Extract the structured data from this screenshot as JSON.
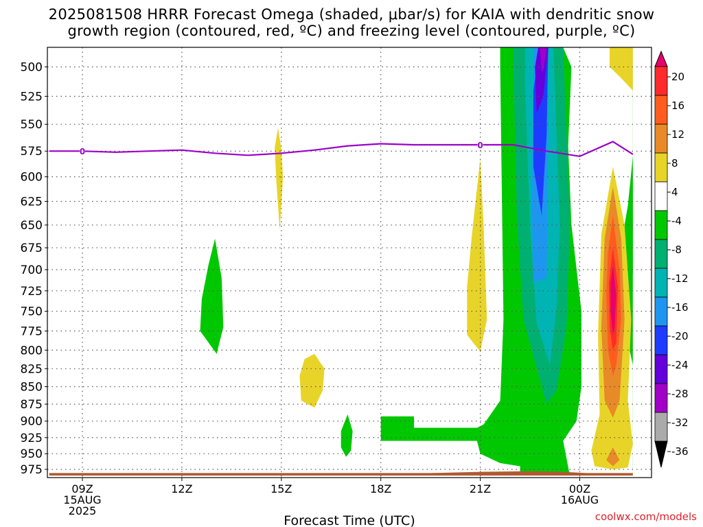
{
  "title": {
    "line1": "2025081508 HRRR Forecast Omega (shaded, μbar/s) for KAIA with dendritic snow",
    "line2": "growth region (contoured, red, ºC) and freezing level (contoured, purple, ºC)"
  },
  "footer": {
    "xlabel": "Forecast Time (UTC)",
    "credit": "coolwx.com/models"
  },
  "chart_data": {
    "type": "filled-contour",
    "x_axis": {
      "label": "Forecast Time (UTC)",
      "range_hours": [
        -1,
        16.6
      ],
      "ticks": [
        {
          "hour": 0,
          "label": "09Z",
          "sub": [
            "15AUG",
            "2025"
          ]
        },
        {
          "hour": 3,
          "label": "12Z",
          "sub": []
        },
        {
          "hour": 6,
          "label": "15Z",
          "sub": []
        },
        {
          "hour": 9,
          "label": "18Z",
          "sub": []
        },
        {
          "hour": 12,
          "label": "21Z",
          "sub": []
        },
        {
          "hour": 15,
          "label": "00Z",
          "sub": [
            "16AUG"
          ]
        }
      ]
    },
    "y_axis": {
      "label": "",
      "unit": "hPa",
      "range": [
        475,
        985
      ],
      "ticks": [
        500,
        525,
        550,
        575,
        600,
        625,
        650,
        675,
        700,
        725,
        750,
        775,
        800,
        825,
        850,
        875,
        900,
        925,
        950,
        975
      ]
    },
    "colorbar": {
      "labels": [
        "20",
        "16",
        "12",
        "8",
        "4",
        "-4",
        "-8",
        "-12",
        "-16",
        "-20",
        "-24",
        "-28",
        "-32",
        "-36"
      ],
      "levels": [
        {
          "lo": 20,
          "color": "#e8006e"
        },
        {
          "lo": 16,
          "color": "#ff2a2a"
        },
        {
          "lo": 12,
          "color": "#ff5c1e"
        },
        {
          "lo": 8,
          "color": "#e88a28"
        },
        {
          "lo": 4,
          "color": "#e8d428"
        },
        {
          "lo": -4,
          "color": "#ffffff"
        },
        {
          "lo": -8,
          "color": "#00c800"
        },
        {
          "lo": -12,
          "color": "#00b070"
        },
        {
          "lo": -16,
          "color": "#00b4b4"
        },
        {
          "lo": -20,
          "color": "#1e96f0"
        },
        {
          "lo": -24,
          "color": "#1e3cff"
        },
        {
          "lo": -28,
          "color": "#6400dc"
        },
        {
          "lo": -32,
          "color": "#a000c8"
        },
        {
          "lo": -36,
          "color": "#aaaaaa"
        },
        {
          "lo": -40,
          "color": "#000000"
        }
      ]
    },
    "freezing_level": {
      "color": "#9b00c8",
      "label": "0",
      "label_hours": [
        0,
        12
      ],
      "points": [
        {
          "h": -1,
          "p": 575
        },
        {
          "h": 0,
          "p": 575
        },
        {
          "h": 1,
          "p": 576
        },
        {
          "h": 2,
          "p": 575
        },
        {
          "h": 3,
          "p": 574
        },
        {
          "h": 4,
          "p": 577
        },
        {
          "h": 5,
          "p": 579
        },
        {
          "h": 6,
          "p": 577
        },
        {
          "h": 7,
          "p": 574
        },
        {
          "h": 8,
          "p": 570
        },
        {
          "h": 9,
          "p": 568
        },
        {
          "h": 10,
          "p": 569
        },
        {
          "h": 11,
          "p": 569
        },
        {
          "h": 12,
          "p": 569
        },
        {
          "h": 13,
          "p": 569
        },
        {
          "h": 14,
          "p": 575
        },
        {
          "h": 15,
          "p": 580
        },
        {
          "h": 16,
          "p": 566
        },
        {
          "h": 16.6,
          "p": 578
        }
      ]
    },
    "omega_regions": [
      {
        "color": "#e8d428",
        "label": "4 to 8",
        "points": [
          [
            5.8,
            572
          ],
          [
            5.9,
            553
          ],
          [
            6.0,
            573
          ],
          [
            6.05,
            600
          ],
          [
            5.95,
            655
          ],
          [
            5.85,
            605
          ]
        ]
      },
      {
        "color": "#00c800",
        "label": "-4 to -8",
        "points": [
          [
            4,
            665
          ],
          [
            4.2,
            710
          ],
          [
            4.25,
            770
          ],
          [
            4.05,
            805
          ],
          [
            3.55,
            775
          ],
          [
            3.6,
            735
          ],
          [
            3.8,
            695
          ]
        ]
      },
      {
        "color": "#e8d428",
        "label": "4 to 8",
        "points": [
          [
            7.0,
            805
          ],
          [
            7.3,
            825
          ],
          [
            7.25,
            855
          ],
          [
            7.0,
            880
          ],
          [
            6.6,
            870
          ],
          [
            6.55,
            835
          ],
          [
            6.7,
            812
          ]
        ]
      },
      {
        "color": "#00c800",
        "label": "-4 to -8",
        "points": [
          [
            8.0,
            890
          ],
          [
            8.15,
            915
          ],
          [
            8.1,
            945
          ],
          [
            7.95,
            955
          ],
          [
            7.8,
            940
          ],
          [
            7.8,
            915
          ]
        ]
      },
      {
        "color": "#e8d428",
        "label": "4 to 8",
        "points": [
          [
            12.0,
            582
          ],
          [
            12.1,
            650
          ],
          [
            12.2,
            760
          ],
          [
            12.0,
            802
          ],
          [
            11.6,
            780
          ],
          [
            11.6,
            720
          ],
          [
            11.75,
            660
          ]
        ]
      },
      {
        "color": "#00c800",
        "label": "-4 to -8",
        "points": [
          [
            12.6,
            475
          ],
          [
            16.6,
            475
          ],
          [
            16.6,
            985
          ],
          [
            13.2,
            985
          ],
          [
            13.2,
            970
          ],
          [
            12.6,
            965
          ],
          [
            12.0,
            950
          ],
          [
            11.9,
            930
          ],
          [
            9.8,
            930
          ],
          [
            9.0,
            930
          ],
          [
            9.0,
            893
          ],
          [
            10.0,
            893
          ],
          [
            10.0,
            910
          ],
          [
            11.9,
            910
          ],
          [
            12.1,
            905
          ],
          [
            12.6,
            870
          ],
          [
            12.7,
            760
          ],
          [
            12.6,
            500
          ]
        ]
      },
      {
        "color": "#ffffff",
        "label": "-4 to 4",
        "points": [
          [
            14.5,
            475
          ],
          [
            16.6,
            475
          ],
          [
            16.6,
            600
          ],
          [
            16.35,
            650
          ],
          [
            16.2,
            740
          ],
          [
            16.6,
            820
          ],
          [
            16.6,
            985
          ],
          [
            14.7,
            985
          ],
          [
            14.5,
            930
          ],
          [
            14.9,
            900
          ],
          [
            15.05,
            850
          ],
          [
            15.05,
            750
          ],
          [
            14.75,
            650
          ],
          [
            14.65,
            570
          ],
          [
            14.75,
            500
          ]
        ]
      },
      {
        "color": "#00c800",
        "label": "-4 to -8",
        "points": [
          [
            16.6,
            580
          ],
          [
            16.6,
            705
          ],
          [
            16.45,
            690
          ],
          [
            16.45,
            630
          ]
        ]
      },
      {
        "color": "#00b070",
        "label": "-8 to -12",
        "points": [
          [
            13.0,
            475
          ],
          [
            14.5,
            475
          ],
          [
            14.6,
            560
          ],
          [
            14.7,
            650
          ],
          [
            14.6,
            770
          ],
          [
            14.3,
            855
          ],
          [
            14.0,
            875
          ],
          [
            13.3,
            760
          ],
          [
            13.1,
            640
          ],
          [
            13.0,
            500
          ]
        ]
      },
      {
        "color": "#00b4b4",
        "label": "-12 to -16",
        "points": [
          [
            13.35,
            475
          ],
          [
            14.2,
            475
          ],
          [
            14.3,
            560
          ],
          [
            14.4,
            650
          ],
          [
            14.3,
            745
          ],
          [
            14.1,
            820
          ],
          [
            13.7,
            765
          ],
          [
            13.5,
            650
          ],
          [
            13.35,
            520
          ]
        ]
      },
      {
        "color": "#1e96f0",
        "label": "-16 to -20",
        "points": [
          [
            13.6,
            475
          ],
          [
            14.0,
            475
          ],
          [
            14.05,
            560
          ],
          [
            14.0,
            710
          ],
          [
            13.6,
            715
          ],
          [
            13.55,
            630
          ],
          [
            13.6,
            520
          ]
        ]
      },
      {
        "color": "#1e3cff",
        "label": "-20 to -24",
        "points": [
          [
            13.8,
            475
          ],
          [
            14.05,
            475
          ],
          [
            14.0,
            560
          ],
          [
            13.85,
            640
          ],
          [
            13.6,
            590
          ],
          [
            13.6,
            520
          ]
        ]
      },
      {
        "color": "#6400dc",
        "label": "-24 to -28",
        "points": [
          [
            13.75,
            475
          ],
          [
            14.05,
            475
          ],
          [
            13.9,
            525
          ],
          [
            13.7,
            540
          ],
          [
            13.65,
            500
          ]
        ]
      },
      {
        "color": "#a000c8",
        "label": "-28 to -32",
        "points": [
          [
            13.8,
            475
          ],
          [
            14.0,
            475
          ],
          [
            13.92,
            500
          ],
          [
            13.85,
            505
          ]
        ]
      },
      {
        "color": "#e8d428",
        "label": "4 to 8",
        "points": [
          [
            15.9,
            475
          ],
          [
            16.6,
            475
          ],
          [
            16.6,
            520
          ],
          [
            16.2,
            508
          ],
          [
            15.9,
            500
          ]
        ]
      },
      {
        "color": "#e8d428",
        "label": "4 to 8",
        "points": [
          [
            16.0,
            590
          ],
          [
            16.35,
            650
          ],
          [
            16.55,
            760
          ],
          [
            16.45,
            870
          ],
          [
            16.6,
            935
          ],
          [
            16.45,
            972
          ],
          [
            16.0,
            975
          ],
          [
            15.45,
            970
          ],
          [
            15.35,
            945
          ],
          [
            15.6,
            890
          ],
          [
            15.55,
            780
          ],
          [
            15.65,
            660
          ]
        ]
      },
      {
        "color": "#e88a28",
        "label": "8 to 12",
        "points": [
          [
            16.0,
            610
          ],
          [
            16.25,
            665
          ],
          [
            16.35,
            760
          ],
          [
            16.2,
            870
          ],
          [
            16.0,
            895
          ],
          [
            15.75,
            870
          ],
          [
            15.65,
            770
          ],
          [
            15.75,
            665
          ]
        ]
      },
      {
        "color": "#e88a28",
        "label": "8 to 12",
        "points": [
          [
            16.0,
            940
          ],
          [
            16.2,
            960
          ],
          [
            16.0,
            970
          ],
          [
            15.8,
            960
          ]
        ]
      },
      {
        "color": "#ff5c1e",
        "label": "12 to 16",
        "points": [
          [
            16.0,
            640
          ],
          [
            16.2,
            700
          ],
          [
            16.25,
            760
          ],
          [
            16.1,
            820
          ],
          [
            16.0,
            835
          ],
          [
            15.85,
            800
          ],
          [
            15.8,
            730
          ],
          [
            15.85,
            680
          ]
        ]
      },
      {
        "color": "#ff2a2a",
        "label": "16 to 20",
        "points": [
          [
            16.0,
            675
          ],
          [
            16.15,
            720
          ],
          [
            16.1,
            790
          ],
          [
            16.0,
            800
          ],
          [
            15.9,
            770
          ],
          [
            15.88,
            715
          ]
        ]
      },
      {
        "color": "#e8006e",
        "label": "20 and above",
        "points": [
          [
            16.0,
            695
          ],
          [
            16.1,
            730
          ],
          [
            16.05,
            770
          ],
          [
            16.0,
            780
          ],
          [
            15.93,
            750
          ],
          [
            15.93,
            715
          ]
        ]
      }
    ],
    "surface_band": {
      "color": "#b05a30",
      "points": [
        [
          -1,
          981
        ],
        [
          10.5,
          981
        ],
        [
          12.0,
          979
        ],
        [
          13.5,
          978
        ],
        [
          14.5,
          979
        ],
        [
          15.2,
          981
        ],
        [
          16.6,
          981
        ],
        [
          16.6,
          985
        ],
        [
          -1,
          985
        ]
      ]
    }
  }
}
